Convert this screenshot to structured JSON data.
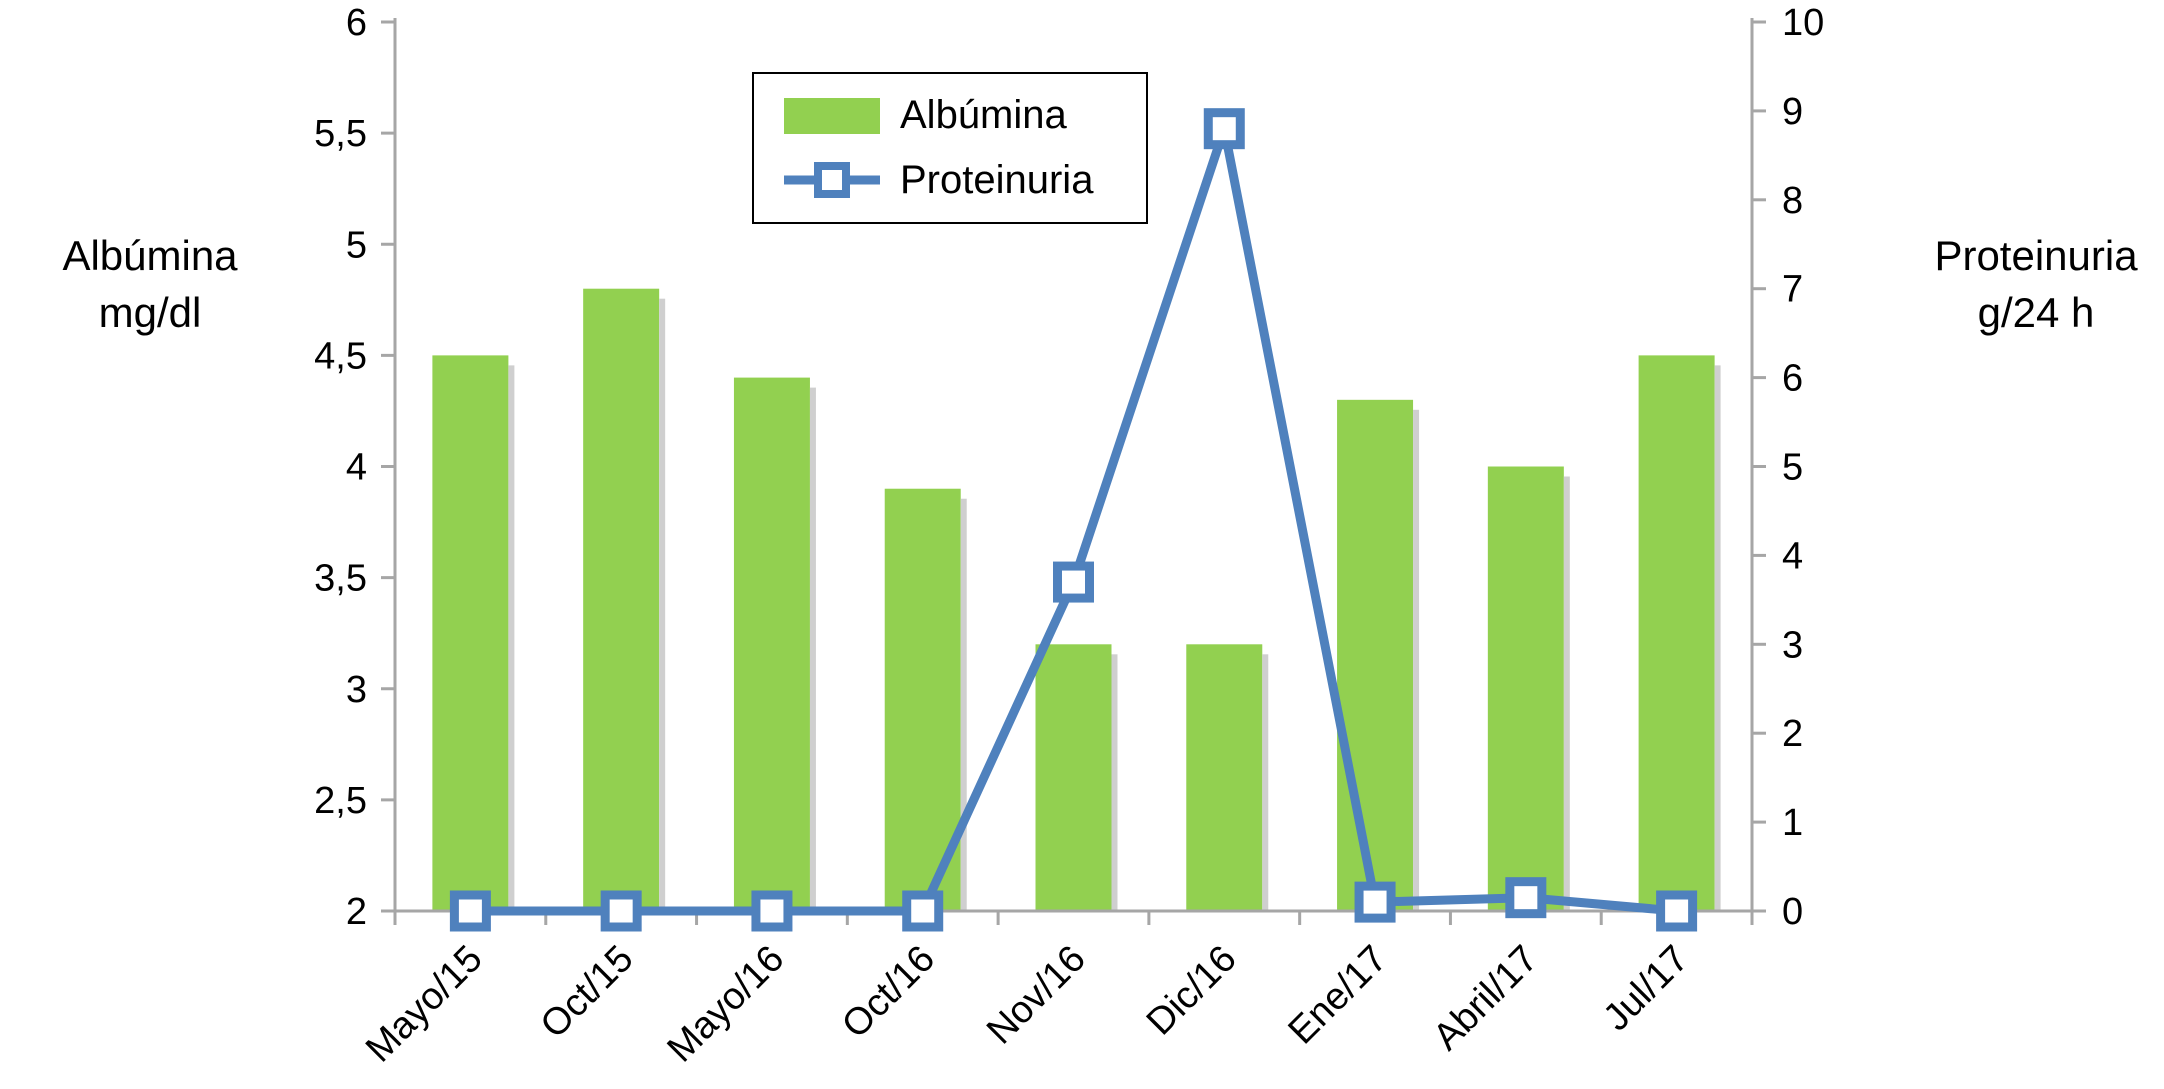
{
  "chart_data": {
    "type": "combo",
    "categories": [
      "Mayo/15",
      "Oct/15",
      "Mayo/16",
      "Oct/16",
      "Nov/16",
      "Dic/16",
      "Ene/17",
      "Abril/17",
      "Jul/17"
    ],
    "series": [
      {
        "name": "Albúmina",
        "type": "bar",
        "axis": "left",
        "color": "#92D050",
        "values": [
          4.5,
          4.8,
          4.4,
          3.9,
          3.2,
          3.2,
          4.3,
          4.0,
          4.5
        ]
      },
      {
        "name": "Proteinuria",
        "type": "line",
        "axis": "right",
        "color": "#4F81BD",
        "marker": "open-square",
        "values": [
          0,
          0,
          0,
          0,
          3.7,
          8.8,
          0.1,
          0.15,
          0
        ]
      }
    ],
    "left_axis": {
      "title_line1": "Albúmina",
      "title_line2": "mg/dl",
      "min": 2,
      "max": 6,
      "tick_values": [
        2,
        2.5,
        3,
        3.5,
        4,
        4.5,
        5,
        5.5,
        6
      ],
      "tick_labels": [
        "2",
        "2,5",
        "3",
        "3,5",
        "4",
        "4,5",
        "5",
        "5,5",
        "6"
      ]
    },
    "right_axis": {
      "title_line1": "Proteinuria",
      "title_line2": "g/24 h",
      "min": 0,
      "max": 10,
      "tick_values": [
        0,
        1,
        2,
        3,
        4,
        5,
        6,
        7,
        8,
        9,
        10
      ],
      "tick_labels": [
        "0",
        "1",
        "2",
        "3",
        "4",
        "5",
        "6",
        "7",
        "8",
        "9",
        "10"
      ]
    },
    "grid": false,
    "legend_position": "top-center-inside"
  },
  "colors": {
    "axis_line": "#A6A6A6",
    "bar_shadow": "#CFCFCF",
    "text": "#000000",
    "background": "#FFFFFF"
  }
}
